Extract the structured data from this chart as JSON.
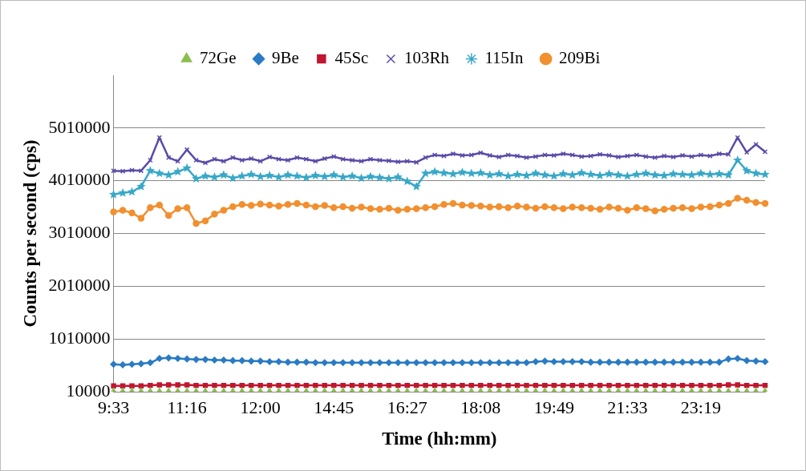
{
  "chart_data": {
    "type": "line",
    "xlabel": "Time (hh:mm)",
    "ylabel": "Counts per second (cps)",
    "categories": [
      "9:33",
      null,
      null,
      null,
      null,
      null,
      null,
      null,
      "11:16",
      null,
      null,
      null,
      null,
      null,
      null,
      null,
      "12:00",
      null,
      null,
      null,
      null,
      null,
      null,
      null,
      "14:45",
      null,
      null,
      null,
      null,
      null,
      null,
      null,
      "16:27",
      null,
      null,
      null,
      null,
      null,
      null,
      null,
      "18:08",
      null,
      null,
      null,
      null,
      null,
      null,
      null,
      "19:49",
      null,
      null,
      null,
      null,
      null,
      null,
      null,
      "21:33",
      null,
      null,
      null,
      null,
      null,
      null,
      null,
      "23:19",
      null,
      null,
      null,
      null,
      null,
      null,
      null
    ],
    "ylim": [
      10000,
      6010000
    ],
    "yticks": [
      10000,
      1010000,
      2010000,
      3010000,
      4010000,
      5010000
    ],
    "grid": "y",
    "legend": "top",
    "series": [
      {
        "name": "72Ge",
        "type": "scatter",
        "marker": "triangle",
        "color": "#8bbf4f",
        "values": [
          20000,
          20000,
          20000,
          20000,
          20000,
          20000,
          20000,
          20000,
          20000,
          20000,
          20000,
          20000,
          20000,
          20000,
          20000,
          20000,
          20000,
          20000,
          20000,
          20000,
          20000,
          20000,
          20000,
          20000,
          20000,
          20000,
          20000,
          20000,
          20000,
          20000,
          20000,
          20000,
          20000,
          20000,
          20000,
          20000,
          20000,
          20000,
          20000,
          20000,
          20000,
          20000,
          20000,
          20000,
          20000,
          20000,
          20000,
          20000,
          20000,
          20000,
          20000,
          20000,
          20000,
          20000,
          20000,
          20000,
          20000,
          20000,
          20000,
          20000,
          20000,
          20000,
          20000,
          20000,
          20000,
          20000,
          20000,
          20000,
          20000,
          20000,
          20000,
          20000
        ]
      },
      {
        "name": "9Be",
        "marker": "diamond",
        "color": "#2a7bc4",
        "values": [
          530000,
          520000,
          530000,
          540000,
          560000,
          640000,
          650000,
          640000,
          630000,
          620000,
          620000,
          610000,
          610000,
          600000,
          600000,
          590000,
          590000,
          580000,
          580000,
          570000,
          570000,
          570000,
          560000,
          560000,
          560000,
          560000,
          560000,
          560000,
          560000,
          560000,
          560000,
          560000,
          560000,
          560000,
          560000,
          560000,
          560000,
          560000,
          560000,
          560000,
          560000,
          560000,
          560000,
          560000,
          560000,
          560000,
          580000,
          590000,
          580000,
          580000,
          580000,
          580000,
          570000,
          570000,
          570000,
          570000,
          570000,
          570000,
          570000,
          570000,
          570000,
          570000,
          570000,
          570000,
          570000,
          570000,
          570000,
          630000,
          640000,
          600000,
          590000,
          580000
        ]
      },
      {
        "name": "45Sc",
        "marker": "square",
        "color": "#c0162f",
        "values": [
          120000,
          120000,
          120000,
          120000,
          130000,
          140000,
          140000,
          140000,
          140000,
          130000,
          130000,
          130000,
          130000,
          130000,
          130000,
          130000,
          130000,
          130000,
          130000,
          130000,
          130000,
          130000,
          130000,
          130000,
          130000,
          130000,
          130000,
          130000,
          130000,
          130000,
          130000,
          130000,
          130000,
          130000,
          130000,
          130000,
          130000,
          130000,
          130000,
          130000,
          130000,
          130000,
          130000,
          130000,
          130000,
          130000,
          130000,
          130000,
          130000,
          130000,
          130000,
          130000,
          130000,
          130000,
          130000,
          130000,
          130000,
          130000,
          130000,
          130000,
          130000,
          130000,
          130000,
          130000,
          130000,
          130000,
          130000,
          140000,
          140000,
          130000,
          130000,
          130000
        ]
      },
      {
        "name": "103Rh",
        "marker": "cross",
        "color": "#5b4aa8",
        "values": [
          4200000,
          4190000,
          4210000,
          4200000,
          4400000,
          4830000,
          4450000,
          4380000,
          4600000,
          4400000,
          4350000,
          4420000,
          4380000,
          4450000,
          4400000,
          4430000,
          4380000,
          4460000,
          4420000,
          4400000,
          4450000,
          4420000,
          4380000,
          4430000,
          4470000,
          4420000,
          4400000,
          4380000,
          4420000,
          4400000,
          4390000,
          4370000,
          4380000,
          4360000,
          4450000,
          4500000,
          4480000,
          4520000,
          4490000,
          4500000,
          4540000,
          4490000,
          4460000,
          4500000,
          4480000,
          4450000,
          4470000,
          4500000,
          4490000,
          4520000,
          4500000,
          4470000,
          4480000,
          4510000,
          4490000,
          4460000,
          4480000,
          4500000,
          4470000,
          4450000,
          4480000,
          4460000,
          4490000,
          4470000,
          4500000,
          4480000,
          4520000,
          4510000,
          4830000,
          4550000,
          4700000,
          4560000
        ]
      },
      {
        "name": "115In",
        "marker": "star",
        "color": "#38a8c8",
        "values": [
          3750000,
          3780000,
          3800000,
          3900000,
          4200000,
          4150000,
          4120000,
          4180000,
          4250000,
          4050000,
          4100000,
          4080000,
          4120000,
          4060000,
          4100000,
          4130000,
          4090000,
          4110000,
          4080000,
          4120000,
          4100000,
          4070000,
          4110000,
          4090000,
          4120000,
          4080000,
          4100000,
          4060000,
          4090000,
          4070000,
          4050000,
          4080000,
          4000000,
          3900000,
          4150000,
          4180000,
          4160000,
          4140000,
          4170000,
          4150000,
          4160000,
          4120000,
          4140000,
          4100000,
          4130000,
          4110000,
          4150000,
          4120000,
          4100000,
          4140000,
          4120000,
          4160000,
          4130000,
          4110000,
          4140000,
          4120000,
          4100000,
          4130000,
          4150000,
          4120000,
          4110000,
          4140000,
          4130000,
          4120000,
          4150000,
          4130000,
          4140000,
          4120000,
          4400000,
          4200000,
          4150000,
          4130000
        ]
      },
      {
        "name": "209Bi",
        "marker": "circle",
        "color": "#f28f2f",
        "values": [
          3420000,
          3450000,
          3400000,
          3300000,
          3500000,
          3550000,
          3350000,
          3480000,
          3500000,
          3200000,
          3250000,
          3380000,
          3450000,
          3520000,
          3560000,
          3540000,
          3570000,
          3550000,
          3530000,
          3560000,
          3580000,
          3550000,
          3520000,
          3540000,
          3500000,
          3520000,
          3490000,
          3510000,
          3480000,
          3470000,
          3490000,
          3450000,
          3470000,
          3480000,
          3500000,
          3520000,
          3560000,
          3580000,
          3550000,
          3540000,
          3530000,
          3510000,
          3520000,
          3500000,
          3530000,
          3510000,
          3490000,
          3520000,
          3500000,
          3480000,
          3510000,
          3500000,
          3490000,
          3470000,
          3510000,
          3490000,
          3450000,
          3500000,
          3480000,
          3440000,
          3470000,
          3490000,
          3500000,
          3480000,
          3510000,
          3520000,
          3550000,
          3580000,
          3680000,
          3640000,
          3600000,
          3580000
        ]
      }
    ]
  }
}
